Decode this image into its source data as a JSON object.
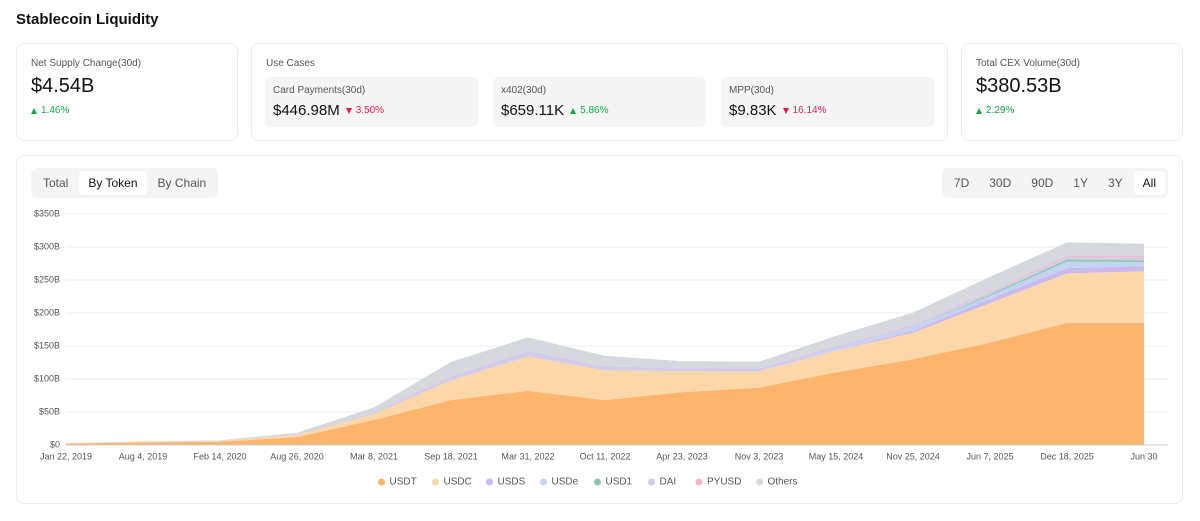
{
  "header": {
    "title": "Stablecoin Liquidity"
  },
  "cards": [
    {
      "label": "Net Supply Change(30d)",
      "value": "$4.54B",
      "change": "1.46%",
      "direction": "up"
    },
    {
      "label": "Total CEX Volume(30d)",
      "value": "$380.53B",
      "change": "2.29%",
      "direction": "up"
    }
  ],
  "use_cases": {
    "title": "Use Cases",
    "items": [
      {
        "label": "Card Payments(30d)",
        "value": "$446.98M",
        "change": "3.50%",
        "direction": "down"
      },
      {
        "label": "x402(30d)",
        "value": "$659.11K",
        "change": "5.86%",
        "direction": "up"
      },
      {
        "label": "MPP(30d)",
        "value": "$9.83K",
        "change": "16.14%",
        "direction": "down"
      }
    ]
  },
  "view_tabs": {
    "items": [
      "Total",
      "By Token",
      "By Chain"
    ],
    "active": 1
  },
  "range_tabs": {
    "items": [
      "7D",
      "30D",
      "90D",
      "1Y",
      "3Y",
      "All"
    ],
    "active": 5
  },
  "chart_data": {
    "type": "stacked_area",
    "categories": [
      "Jan 22, 2019",
      "Aug 4, 2019",
      "Feb 14, 2020",
      "Aug 26, 2020",
      "Mar 8, 2021",
      "Sep 18, 2021",
      "Mar 31, 2022",
      "Oct 11, 2022",
      "Apr 23, 2023",
      "Nov 3, 2023",
      "May 15, 2024",
      "Nov 25, 2024",
      "Jun 7, 2025",
      "Dec 18, 2025",
      "Jun 30"
    ],
    "series": [
      {
        "name": "USDT",
        "color": "#fdb46c",
        "values": [
          2,
          4,
          5,
          12,
          38,
          68,
          82,
          68,
          80,
          87,
          110,
          130,
          155,
          185,
          185
        ]
      },
      {
        "name": "USDC",
        "color": "#fcd7a9",
        "values": [
          0.5,
          0.6,
          1,
          3,
          9,
          30,
          52,
          45,
          32,
          24,
          33,
          40,
          60,
          75,
          78
        ]
      },
      {
        "name": "USDS",
        "color": "#c8b9ef",
        "values": [
          0,
          0,
          0,
          0,
          0,
          0,
          0,
          0,
          0,
          0,
          0,
          3,
          6,
          8,
          8
        ]
      },
      {
        "name": "USDe",
        "color": "#c3d3f1",
        "values": [
          0,
          0,
          0,
          0,
          0,
          0,
          0,
          0,
          0,
          0,
          2,
          5,
          5,
          10,
          6
        ]
      },
      {
        "name": "USD1",
        "color": "#8fc8a8",
        "values": [
          0,
          0,
          0,
          0,
          0,
          0,
          0,
          0,
          0,
          0,
          0,
          0,
          2,
          3,
          3
        ]
      },
      {
        "name": "DAI",
        "color": "#d3cbea",
        "values": [
          0.1,
          0.2,
          0.2,
          0.5,
          2,
          6,
          9,
          6,
          5,
          5,
          5,
          4,
          4,
          4,
          4
        ]
      },
      {
        "name": "PYUSD",
        "color": "#f2b8c6",
        "values": [
          0,
          0,
          0,
          0,
          0,
          0,
          0,
          0,
          0,
          0.1,
          0.4,
          0.5,
          0.9,
          2,
          3
        ]
      },
      {
        "name": "Others",
        "color": "#d5d8dd",
        "values": [
          0.5,
          0.7,
          1,
          3,
          8,
          22,
          20,
          16,
          10,
          10,
          15,
          18,
          22,
          20,
          18
        ]
      }
    ],
    "ylim": [
      0,
      350
    ],
    "yticks": [
      {
        "value": 0,
        "label": "$0"
      },
      {
        "value": 50,
        "label": "$50B"
      },
      {
        "value": 100,
        "label": "$100B"
      },
      {
        "value": 150,
        "label": "$150B"
      },
      {
        "value": 200,
        "label": "$200B"
      },
      {
        "value": 250,
        "label": "$250B"
      },
      {
        "value": 300,
        "label": "$300B"
      },
      {
        "value": 350,
        "label": "$350B"
      }
    ],
    "grid": true
  }
}
